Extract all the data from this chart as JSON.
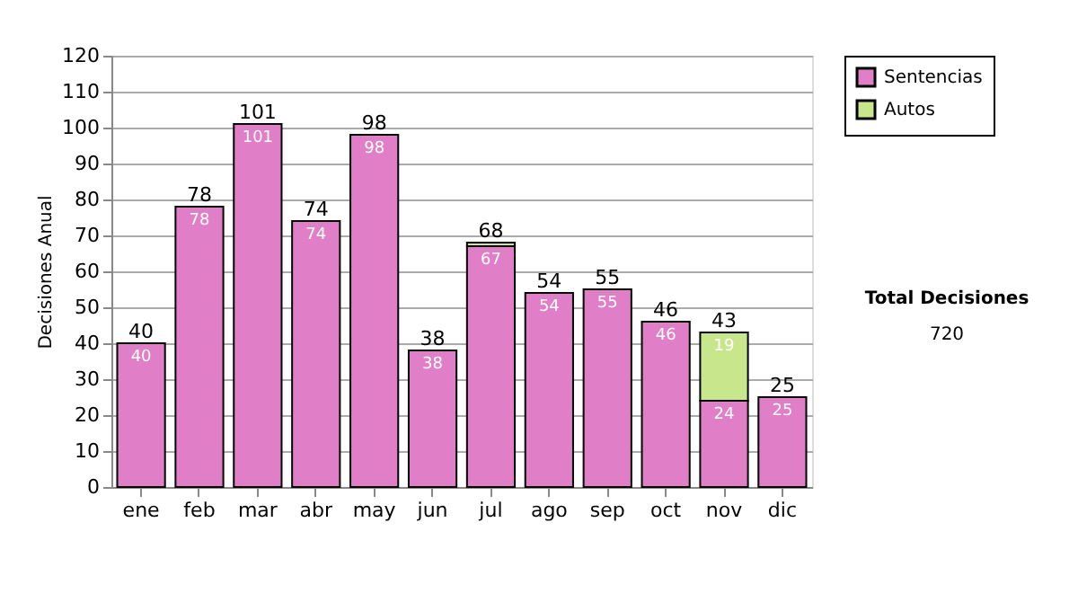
{
  "chart_data": {
    "type": "bar",
    "stacked": true,
    "ylabel": "Decisiones Anual",
    "categories": [
      "ene",
      "feb",
      "mar",
      "abr",
      "may",
      "jun",
      "jul",
      "ago",
      "sep",
      "oct",
      "nov",
      "dic"
    ],
    "series": [
      {
        "name": "Sentencias",
        "color": "#e07ec8",
        "values": [
          40,
          78,
          101,
          74,
          98,
          38,
          67,
          54,
          55,
          46,
          24,
          25
        ],
        "value_labels": [
          "40",
          "78",
          "101",
          "74",
          "98",
          "38",
          "67",
          "54",
          "55",
          "46",
          "24",
          "25"
        ]
      },
      {
        "name": "Autos",
        "color": "#c8e68c",
        "values": [
          null,
          null,
          null,
          null,
          null,
          null,
          1,
          null,
          null,
          null,
          19,
          null
        ],
        "value_labels": [
          null,
          null,
          null,
          null,
          null,
          null,
          null,
          null,
          null,
          null,
          "19",
          null
        ]
      }
    ],
    "totals": [
      "40",
      "78",
      "101",
      "74",
      "98",
      "38",
      "68",
      "54",
      "55",
      "46",
      "43",
      "25"
    ],
    "ylim": [
      0,
      120
    ],
    "yticks": [
      0,
      10,
      20,
      30,
      40,
      50,
      60,
      70,
      80,
      90,
      100,
      110,
      120
    ],
    "grid": "y",
    "legend": "right",
    "annotations": [
      "Total Decisiones",
      "720"
    ]
  }
}
